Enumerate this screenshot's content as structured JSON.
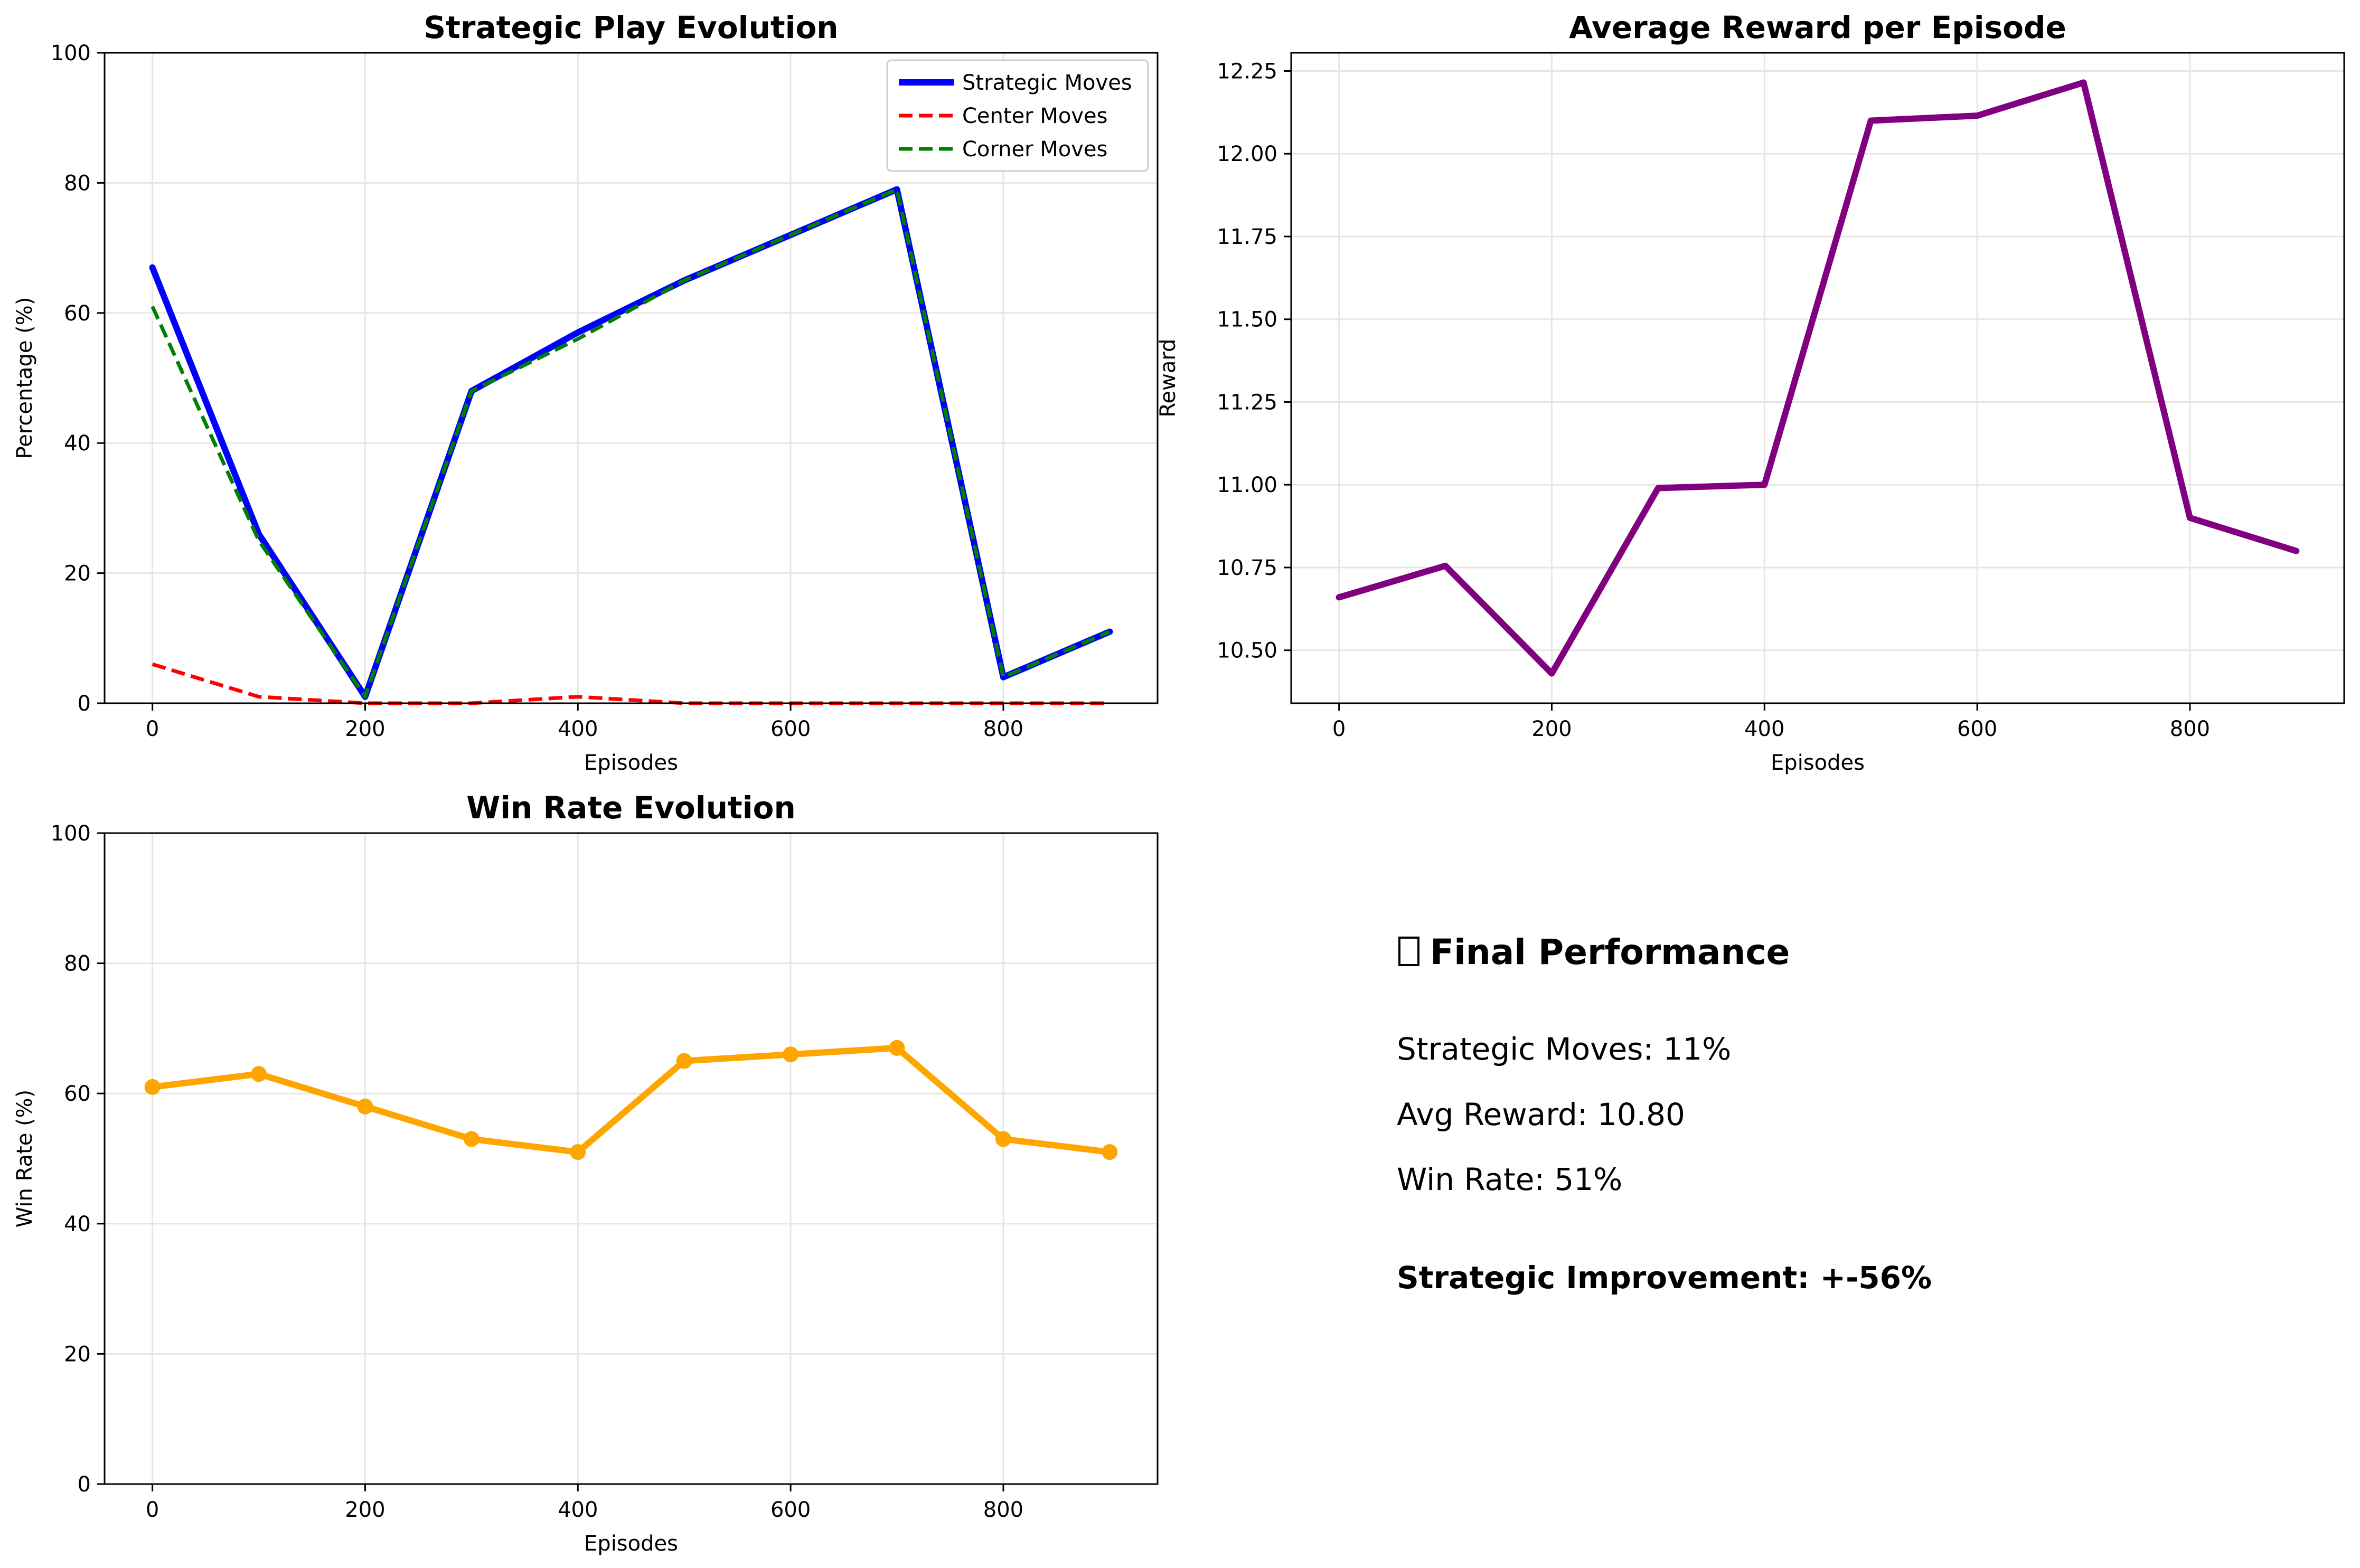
{
  "chart_data": [
    {
      "type": "line",
      "title": "Strategic Play Evolution",
      "xlabel": "Episodes",
      "ylabel": "Percentage (%)",
      "x": [
        0,
        100,
        200,
        300,
        400,
        500,
        600,
        700,
        800,
        900
      ],
      "xlim": [
        -45,
        945
      ],
      "ylim": [
        0,
        100
      ],
      "xticks": [
        "0",
        "200",
        "400",
        "600",
        "800"
      ],
      "yticks": [
        "0",
        "20",
        "40",
        "60",
        "80",
        "100"
      ],
      "grid": true,
      "legend": "upper-right",
      "series": [
        {
          "name": "Strategic Moves",
          "values": [
            67,
            26,
            1,
            48,
            57,
            65,
            72,
            79,
            4,
            11
          ],
          "color": "#0000ff",
          "style": "solid"
        },
        {
          "name": "Center Moves",
          "values": [
            6,
            1,
            0,
            0,
            1,
            0,
            0,
            0,
            0,
            0
          ],
          "color": "#ff0000",
          "style": "dashed"
        },
        {
          "name": "Corner Moves",
          "values": [
            61,
            25,
            1,
            48,
            56,
            65,
            72,
            79,
            4,
            11
          ],
          "color": "#008000",
          "style": "dashed"
        }
      ]
    },
    {
      "type": "line",
      "title": "Average Reward per Episode",
      "xlabel": "Episodes",
      "ylabel": "Reward",
      "x": [
        0,
        100,
        200,
        300,
        400,
        500,
        600,
        700,
        800,
        900
      ],
      "xlim": [
        -45,
        945
      ],
      "ylim": [
        10.34,
        12.305
      ],
      "xticks": [
        "0",
        "200",
        "400",
        "600",
        "800"
      ],
      "yticks": [
        "10.50",
        "10.75",
        "11.00",
        "11.25",
        "11.50",
        "11.75",
        "12.00",
        "12.25"
      ],
      "grid": true,
      "series": [
        {
          "values": [
            10.66,
            10.755,
            10.43,
            10.99,
            11.0,
            12.1,
            12.115,
            12.215,
            10.9,
            10.8
          ],
          "color": "#800080",
          "style": "solid"
        }
      ]
    },
    {
      "type": "line",
      "title": "Win Rate Evolution",
      "xlabel": "Episodes",
      "ylabel": "Win Rate (%)",
      "x": [
        0,
        100,
        200,
        300,
        400,
        500,
        600,
        700,
        800,
        900
      ],
      "xlim": [
        -45,
        945
      ],
      "ylim": [
        0,
        100
      ],
      "xticks": [
        "0",
        "200",
        "400",
        "600",
        "800"
      ],
      "yticks": [
        "0",
        "20",
        "40",
        "60",
        "80",
        "100"
      ],
      "grid": true,
      "markers": true,
      "series": [
        {
          "values": [
            61,
            63,
            58,
            53,
            51,
            65,
            66,
            67,
            53,
            51
          ],
          "color": "#ffa500",
          "style": "solid"
        }
      ]
    }
  ],
  "summary": {
    "heading_icon": "missing-glyph-icon",
    "heading": "Final Performance",
    "strategic_moves": "Strategic Moves: 11%",
    "avg_reward": "Avg Reward: 10.80",
    "win_rate": "Win Rate: 51%",
    "improvement": "Strategic Improvement: +-56%"
  }
}
